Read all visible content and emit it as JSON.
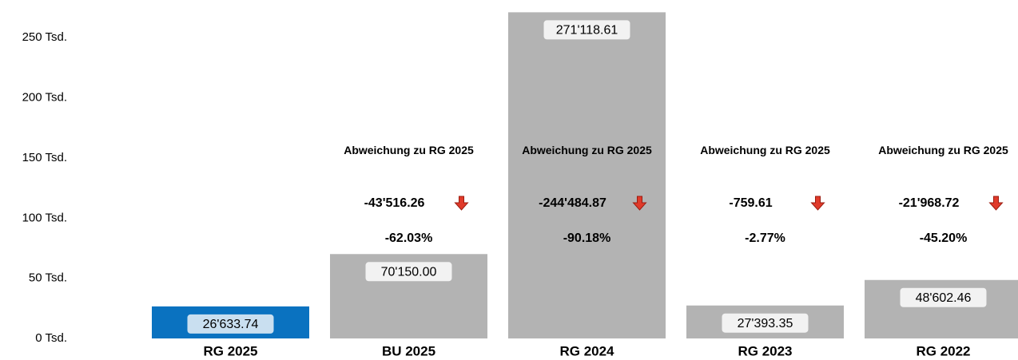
{
  "chart_data": {
    "type": "bar",
    "categories": [
      "RG 2025",
      "BU 2025",
      "RG 2024",
      "RG 2023",
      "RG 2022"
    ],
    "values": [
      26633.74,
      70150.0,
      271118.61,
      27393.35,
      48602.46
    ],
    "value_labels": [
      "26'633.74",
      "70'150.00",
      "271'118.61",
      "27'393.35",
      "48'602.46"
    ],
    "colors": [
      "#0a72c0",
      "#b3b3b3",
      "#b3b3b3",
      "#b3b3b3",
      "#b3b3b3"
    ],
    "ylim": [
      0,
      280000
    ],
    "yticks": [
      {
        "value": 0,
        "label": "0 Tsd."
      },
      {
        "value": 50000,
        "label": "50 Tsd."
      },
      {
        "value": 100000,
        "label": "100 Tsd."
      },
      {
        "value": 150000,
        "label": "150 Tsd."
      },
      {
        "value": 200000,
        "label": "200 Tsd."
      },
      {
        "value": 250000,
        "label": "250 Tsd."
      }
    ],
    "grid": false,
    "deviations": {
      "heading": "Abweichung zu RG 2025",
      "values": [
        null,
        -43516.26,
        -244484.87,
        -759.61,
        -21968.72
      ],
      "value_labels": [
        null,
        "-43'516.26",
        "-244'484.87",
        "-759.61",
        "-21'968.72"
      ],
      "percent": [
        null,
        -62.03,
        -90.18,
        -2.77,
        -45.2
      ],
      "percent_labels": [
        null,
        "-62.03%",
        "-90.18%",
        "-2.77%",
        "-45.20%"
      ]
    }
  }
}
